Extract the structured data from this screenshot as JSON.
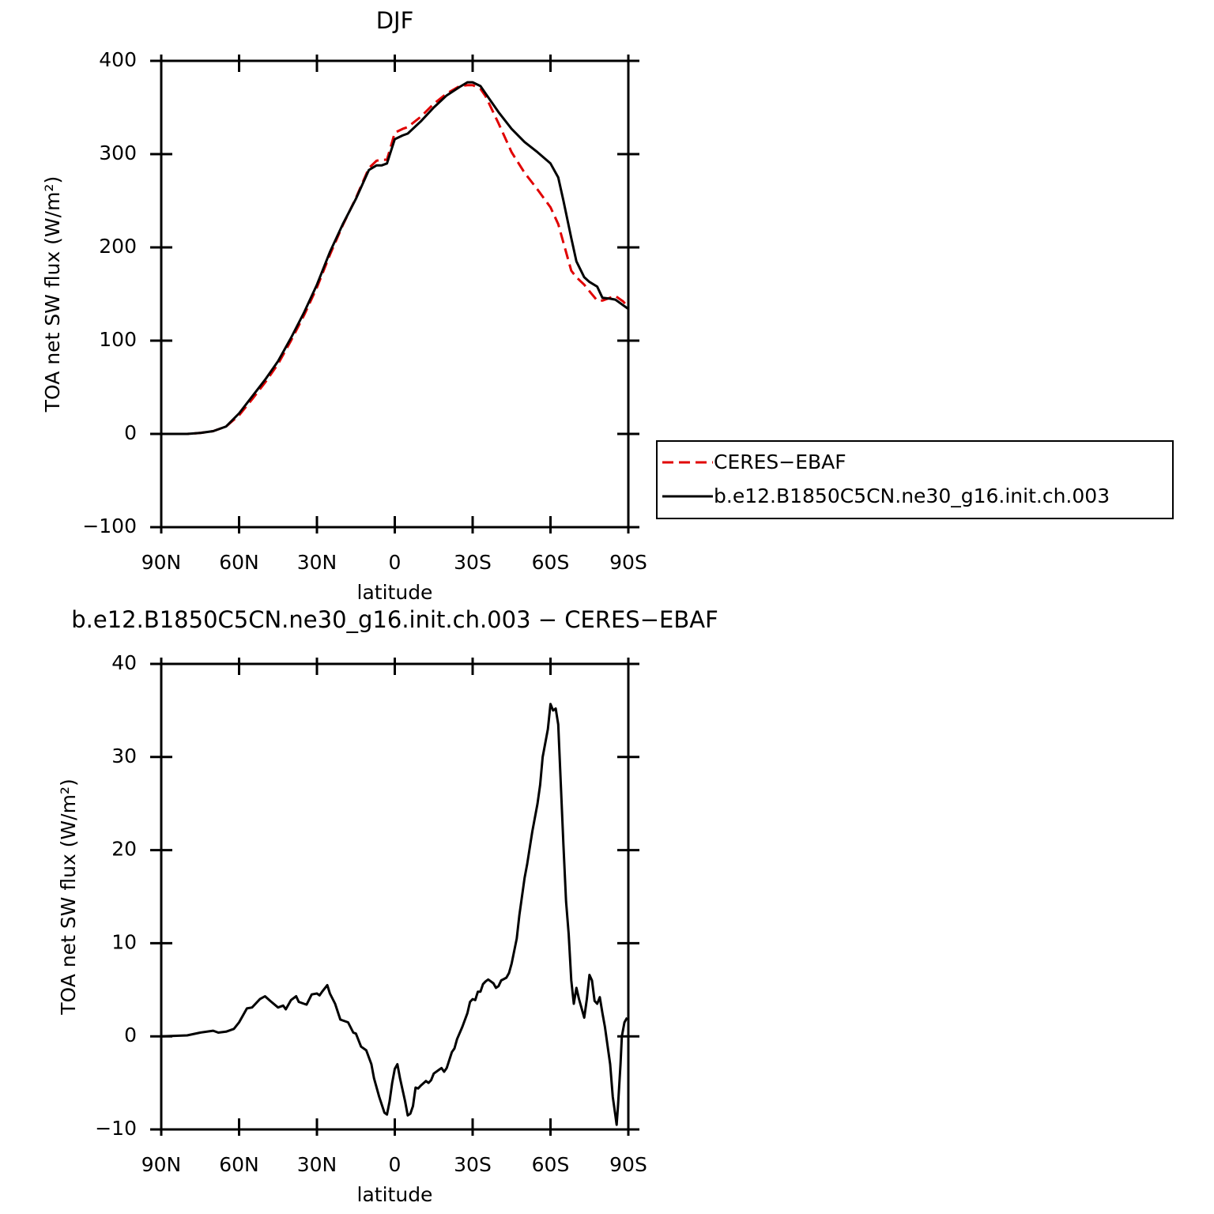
{
  "chart_data": [
    {
      "type": "line",
      "title": "DJF",
      "xlabel": "latitude",
      "ylabel": "TOA net SW flux (W/m²)",
      "x": [
        90,
        85,
        80,
        75,
        70,
        65,
        60,
        55,
        50,
        45,
        40,
        35,
        30,
        25,
        20,
        15,
        10,
        7,
        5,
        3,
        0,
        -3,
        -5,
        -10,
        -15,
        -20,
        -25,
        -28,
        -30,
        -33,
        -35,
        -40,
        -45,
        -50,
        -55,
        -60,
        -63,
        -65,
        -68,
        -70,
        -73,
        -75,
        -78,
        -80,
        -83,
        -85,
        -88,
        -90
      ],
      "series": [
        {
          "name": "CERES−EBAF",
          "color": "#e00000",
          "dash": true,
          "values": [
            0,
            0,
            0,
            1,
            3,
            8,
            20,
            37,
            55,
            75,
            100,
            127,
            157,
            192,
            224,
            253,
            285,
            293,
            294,
            294,
            323,
            327,
            329,
            340,
            354,
            365,
            373,
            374,
            374,
            370,
            362,
            333,
            302,
            280,
            262,
            243,
            225,
            205,
            175,
            168,
            160,
            153,
            143,
            143,
            146,
            148,
            142,
            136
          ]
        },
        {
          "name": "b.e12.B1850C5CN.ne30_g16.init.ch.003",
          "color": "#000000",
          "dash": false,
          "values": [
            0,
            0,
            0,
            1,
            3,
            8,
            22,
            40,
            58,
            78,
            103,
            130,
            160,
            195,
            225,
            252,
            283,
            288,
            288,
            290,
            316,
            320,
            322,
            335,
            350,
            363,
            372,
            377,
            377,
            373,
            365,
            345,
            327,
            313,
            302,
            290,
            275,
            250,
            210,
            185,
            168,
            163,
            158,
            146,
            145,
            144,
            138,
            134
          ]
        }
      ],
      "xlim": [
        90,
        -90
      ],
      "xticks": [
        {
          "value": 90,
          "label": "90N"
        },
        {
          "value": 60,
          "label": "60N"
        },
        {
          "value": 30,
          "label": "30N"
        },
        0,
        {
          "value": -30,
          "label": "30S"
        },
        {
          "value": -60,
          "label": "60S"
        },
        {
          "value": -90,
          "label": "90S"
        }
      ],
      "ylim": [
        -100,
        400
      ],
      "yticks": [
        {
          "value": -100,
          "label": "−100"
        },
        0,
        100,
        200,
        300,
        400
      ],
      "legend": "right"
    },
    {
      "type": "line",
      "title": "b.e12.B1850C5CN.ne30_g16.init.ch.003 − CERES−EBAF",
      "xlabel": "latitude",
      "ylabel": "TOA net SW flux (W/m²)",
      "x": [
        90,
        80,
        75,
        70,
        68,
        65,
        62,
        60,
        57,
        55,
        52,
        50,
        48,
        45,
        43,
        42,
        40,
        38,
        37,
        35,
        34,
        32,
        30,
        29,
        28,
        26,
        25,
        23,
        21,
        18,
        16,
        15,
        13,
        11,
        9,
        8,
        6,
        4,
        3,
        2,
        1,
        0,
        -1,
        -2,
        -4,
        -5,
        -6,
        -7,
        -8,
        -9,
        -10,
        -12,
        -13,
        -14,
        -15,
        -17,
        -18,
        -19,
        -20,
        -22,
        -23,
        -24,
        -26,
        -28,
        -29,
        -30,
        -31,
        -32,
        -33,
        -34,
        -35,
        -36,
        -37,
        -38,
        -39,
        -40,
        -41,
        -43,
        -44,
        -45,
        -47,
        -48,
        -50,
        -51,
        -53,
        -55,
        -56,
        -57,
        -59,
        -60,
        -61,
        -62,
        -63,
        -64,
        -65,
        -66,
        -67,
        -68,
        -69,
        -70,
        -71,
        -73,
        -74,
        -75,
        -76,
        -77,
        -78,
        -79,
        -80,
        -81,
        -82,
        -83,
        -84,
        -85,
        -85.5,
        -86,
        -87,
        -87.5,
        -88.5,
        -89.5
      ],
      "series": [
        {
          "name": "difference",
          "color": "#000000",
          "dash": false,
          "values": [
            0,
            0.1,
            0.4,
            0.6,
            0.4,
            0.5,
            0.8,
            1.5,
            3.0,
            3.1,
            4.0,
            4.3,
            3.8,
            3.1,
            3.3,
            2.9,
            3.9,
            4.3,
            3.7,
            3.5,
            3.4,
            4.5,
            4.6,
            4.4,
            4.8,
            5.5,
            4.6,
            3.5,
            1.8,
            1.5,
            0.4,
            0.3,
            -1.1,
            -1.5,
            -3,
            -4.5,
            -6.5,
            -8.2,
            -8.4,
            -7,
            -5,
            -3.5,
            -3.0,
            -4.5,
            -7,
            -8.5,
            -8.3,
            -7.5,
            -5.5,
            -5.6,
            -5.3,
            -4.8,
            -5,
            -4.7,
            -4.0,
            -3.6,
            -3.4,
            -3.8,
            -3.4,
            -1.7,
            -1.3,
            -0.3,
            1.0,
            2.5,
            3.7,
            4.0,
            3.9,
            4.8,
            4.8,
            5.6,
            5.9,
            6.1,
            5.9,
            5.7,
            5.2,
            5.4,
            6.0,
            6.3,
            6.8,
            7.8,
            10.5,
            13,
            17,
            18.5,
            22,
            25,
            27,
            30,
            33,
            35.7,
            35,
            35.2,
            33.5,
            27,
            20.5,
            14.5,
            11,
            6,
            3.5,
            5.2,
            4,
            2,
            4,
            6.6,
            6,
            3.8,
            3.5,
            4.2,
            2.5,
            1,
            -1,
            -3,
            -6.5,
            -8.5,
            -9.5,
            -7.5,
            -3,
            0,
            1.5,
            2
          ]
        }
      ],
      "xlim": [
        90,
        -90
      ],
      "xticks": [
        {
          "value": 90,
          "label": "90N"
        },
        {
          "value": 60,
          "label": "60N"
        },
        {
          "value": 30,
          "label": "30N"
        },
        0,
        {
          "value": -30,
          "label": "30S"
        },
        {
          "value": -60,
          "label": "60S"
        },
        {
          "value": -90,
          "label": "90S"
        }
      ],
      "ylim": [
        -10,
        40
      ],
      "yticks": [
        {
          "value": -10,
          "label": "−10"
        },
        0,
        10,
        20,
        30,
        40
      ]
    }
  ]
}
